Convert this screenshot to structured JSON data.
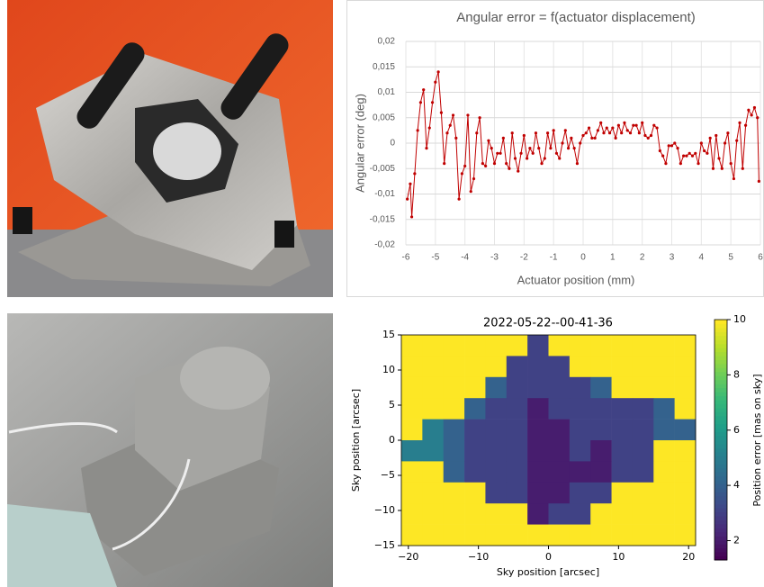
{
  "chart_data": [
    {
      "type": "line",
      "title": "Angular error = f(actuator displacement)",
      "xlabel": "Actuator position (mm)",
      "ylabel": "Angular error (deg)",
      "color": "#c00000",
      "marker": true,
      "grid": true,
      "x": [
        -5.95,
        -5.85,
        -5.8,
        -5.7,
        -5.6,
        -5.5,
        -5.4,
        -5.3,
        -5.2,
        -5.1,
        -5.0,
        -4.9,
        -4.8,
        -4.7,
        -4.6,
        -4.5,
        -4.4,
        -4.3,
        -4.2,
        -4.1,
        -4.0,
        -3.9,
        -3.8,
        -3.7,
        -3.6,
        -3.5,
        -3.4,
        -3.3,
        -3.2,
        -3.1,
        -3.0,
        -2.9,
        -2.8,
        -2.7,
        -2.6,
        -2.5,
        -2.4,
        -2.3,
        -2.2,
        -2.1,
        -2.0,
        -1.9,
        -1.8,
        -1.7,
        -1.6,
        -1.5,
        -1.4,
        -1.3,
        -1.2,
        -1.1,
        -1.0,
        -0.9,
        -0.8,
        -0.7,
        -0.6,
        -0.5,
        -0.4,
        -0.3,
        -0.2,
        -0.1,
        0.0,
        0.1,
        0.2,
        0.3,
        0.4,
        0.5,
        0.6,
        0.7,
        0.8,
        0.9,
        1.0,
        1.1,
        1.2,
        1.3,
        1.4,
        1.5,
        1.6,
        1.7,
        1.8,
        1.9,
        2.0,
        2.1,
        2.2,
        2.3,
        2.4,
        2.5,
        2.6,
        2.7,
        2.8,
        2.9,
        3.0,
        3.1,
        3.2,
        3.3,
        3.4,
        3.5,
        3.6,
        3.7,
        3.8,
        3.9,
        4.0,
        4.1,
        4.2,
        4.3,
        4.4,
        4.5,
        4.6,
        4.7,
        4.8,
        4.9,
        5.0,
        5.1,
        5.2,
        5.3,
        5.4,
        5.5,
        5.6,
        5.7,
        5.8,
        5.9,
        5.95
      ],
      "values": [
        -0.011,
        -0.008,
        -0.0145,
        -0.006,
        0.0025,
        0.008,
        0.0105,
        -0.001,
        0.003,
        0.008,
        0.012,
        0.014,
        0.006,
        -0.004,
        0.002,
        0.0035,
        0.0055,
        0.001,
        -0.011,
        -0.006,
        -0.0045,
        0.0055,
        -0.0095,
        -0.007,
        0.002,
        0.005,
        -0.004,
        -0.0045,
        0.0005,
        -0.001,
        -0.004,
        -0.002,
        -0.002,
        0.001,
        -0.004,
        -0.005,
        0.002,
        -0.003,
        -0.0055,
        -0.002,
        0.0015,
        -0.003,
        -0.001,
        -0.002,
        0.002,
        -0.001,
        -0.004,
        -0.003,
        0.002,
        -0.001,
        0.0025,
        -0.002,
        -0.003,
        0,
        0.0025,
        -0.001,
        0.001,
        -0.001,
        -0.004,
        0,
        0.0015,
        0.002,
        0.003,
        0.001,
        0.001,
        0.0025,
        0.004,
        0.002,
        0.003,
        0.002,
        0.003,
        0.001,
        0.0035,
        0.002,
        0.004,
        0.0025,
        0.002,
        0.0035,
        0.0035,
        0.002,
        0.004,
        0.0015,
        0.001,
        0.0015,
        0.0035,
        0.003,
        -0.0015,
        -0.0025,
        -0.004,
        -0.0005,
        -0.0005,
        0,
        -0.001,
        -0.004,
        -0.0025,
        -0.0025,
        -0.002,
        -0.0025,
        -0.002,
        -0.004,
        0,
        -0.0015,
        -0.002,
        0.001,
        -0.005,
        0.0015,
        -0.003,
        -0.005,
        0,
        0.002,
        -0.004,
        -0.007,
        0.0005,
        0.004,
        -0.005,
        0.0035,
        0.0065,
        0.0055,
        0.007,
        0.005,
        -0.0075
      ],
      "xlim": [
        -6,
        6
      ],
      "ylim": [
        -0.02,
        0.02
      ],
      "xticks": [
        -6,
        -5,
        -4,
        -3,
        -2,
        -1,
        0,
        1,
        2,
        3,
        4,
        5,
        6
      ],
      "yticks": [
        {
          "value": 0.02,
          "label": "0,02"
        },
        {
          "value": 0.015,
          "label": "0,015"
        },
        {
          "value": 0.01,
          "label": "0,01"
        },
        {
          "value": 0.005,
          "label": "0,005"
        },
        0,
        {
          "value": -0.005,
          "label": "-0,005"
        },
        {
          "value": -0.01,
          "label": "-0,01"
        },
        {
          "value": -0.015,
          "label": "-0,015"
        },
        {
          "value": -0.02,
          "label": "-0,02"
        }
      ]
    },
    {
      "type": "heatmap",
      "title": "2022-05-22--00-41-36",
      "xlabel": "Sky position [arcsec]",
      "ylabel": "Sky position [arcsec]",
      "colorbar_label": "Position error [mas on sky]",
      "colormap": "viridis",
      "x": [
        -19.5,
        -16.5,
        -13.5,
        -10.5,
        -7.5,
        -4.5,
        -1.5,
        1.5,
        4.5,
        7.5,
        10.5,
        13.5,
        16.5,
        19.5
      ],
      "y": [
        13.5,
        10.5,
        7.5,
        4.5,
        1.5,
        -1.5,
        -4.5,
        -7.5,
        -10.5,
        -13.5
      ],
      "z": [
        [
          10,
          10,
          10,
          10,
          10,
          10,
          3,
          10,
          10,
          10,
          10,
          10,
          10,
          10
        ],
        [
          10,
          10,
          10,
          10,
          10,
          3,
          3,
          3,
          10,
          10,
          10,
          10,
          10,
          10
        ],
        [
          10,
          10,
          10,
          10,
          4,
          3,
          3,
          3,
          3,
          4,
          10,
          10,
          10,
          10
        ],
        [
          10,
          10,
          10,
          4,
          3,
          3,
          2,
          3,
          3,
          3,
          3,
          3,
          4,
          10
        ],
        [
          10,
          5,
          4,
          3,
          3,
          3,
          2,
          2,
          3,
          3,
          3,
          3,
          4,
          4
        ],
        [
          5,
          5,
          4,
          3,
          3,
          3,
          2,
          2,
          3,
          2,
          3,
          3,
          10,
          10
        ],
        [
          10,
          10,
          4,
          3,
          3,
          3,
          2,
          2,
          2,
          2,
          3,
          3,
          10,
          10
        ],
        [
          10,
          10,
          10,
          10,
          3,
          3,
          2,
          2,
          3,
          3,
          10,
          10,
          10,
          10
        ],
        [
          10,
          10,
          10,
          10,
          10,
          10,
          2,
          3,
          3,
          10,
          10,
          10,
          10,
          10
        ],
        [
          10,
          10,
          10,
          10,
          10,
          10,
          10,
          10,
          10,
          10,
          10,
          10,
          10,
          10
        ]
      ],
      "xlim": [
        -21,
        21
      ],
      "ylim": [
        -15,
        15
      ],
      "clim": [
        1.3,
        10
      ],
      "xticks": [
        {
          "value": -20,
          "label": "−20"
        },
        {
          "value": -10,
          "label": "−10"
        },
        0,
        10,
        20
      ],
      "yticks": [
        {
          "value": -15,
          "label": "−15"
        },
        {
          "value": -10,
          "label": "−10"
        },
        {
          "value": -5,
          "label": "−5"
        },
        0,
        5,
        10,
        15
      ],
      "cticks": [
        2,
        4,
        6,
        8,
        10
      ]
    }
  ]
}
